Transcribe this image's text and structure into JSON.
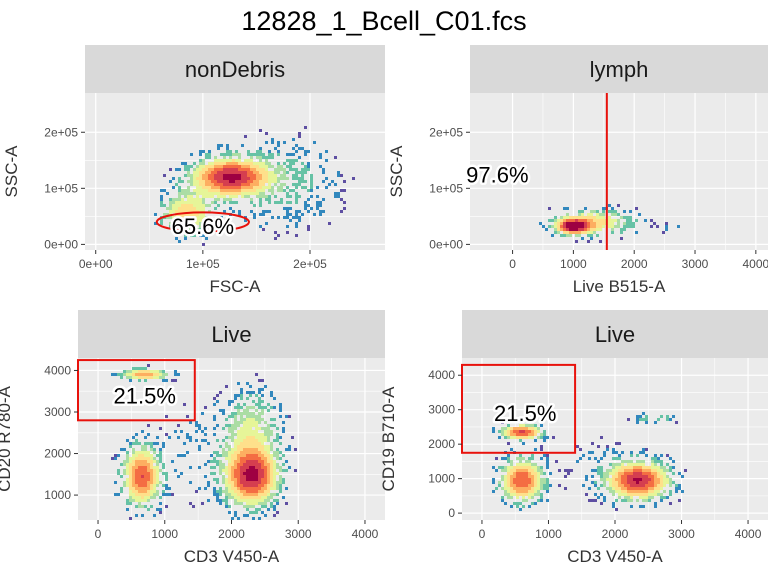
{
  "title": "12828_1_Bcell_C01.fcs",
  "colors": {
    "panel_bg": "#ebebeb",
    "grid": "#ffffff",
    "strip_bg": "#d9d9d9",
    "gate": "#e8120c",
    "density_scale": [
      "#5e4fa2",
      "#3288bd",
      "#66c2a5",
      "#abdda4",
      "#e6f598",
      "#fee08b",
      "#fdae61",
      "#f46d43",
      "#d53e4f",
      "#9e0142"
    ]
  },
  "chart_data": [
    {
      "type": "heatmap",
      "panel": "nonDebris",
      "xlabel": "FSC-A",
      "ylabel": "SSC-A",
      "xlim": [
        -10000,
        270000
      ],
      "ylim": [
        -10000,
        270000
      ],
      "xticks": [
        {
          "v": 0,
          "label": "0e+00"
        },
        {
          "v": 100000,
          "label": "1e+05"
        },
        {
          "v": 200000,
          "label": "2e+05"
        }
      ],
      "yticks": [
        {
          "v": 0,
          "label": "0e+00"
        },
        {
          "v": 100000,
          "label": "1e+05"
        },
        {
          "v": 200000,
          "label": "2e+05"
        }
      ],
      "gate": {
        "shape": "ellipse",
        "cx": 100000,
        "cy": 40000,
        "rx": 43000,
        "ry": 17000
      },
      "gate_label": {
        "text": "65.6%",
        "x": 100000,
        "y": 33000
      },
      "populations": [
        {
          "x_center": 125000,
          "x_sd": 23000,
          "y_center": 120000,
          "y_sd": 22000,
          "weight": 1.0
        },
        {
          "x_center": 85000,
          "x_sd": 16000,
          "y_center": 55000,
          "y_sd": 25000,
          "weight": 0.55
        },
        {
          "x_center": 175000,
          "x_sd": 35000,
          "y_center": 110000,
          "y_sd": 55000,
          "weight": 0.18
        }
      ],
      "x_min_data": 55000
    },
    {
      "type": "heatmap",
      "panel": "lymph",
      "xlabel": "Live B515-A",
      "ylabel": "SSC-A",
      "xlim": [
        -700,
        4200
      ],
      "ylim": [
        -10000,
        270000
      ],
      "xticks": [
        {
          "v": 0,
          "label": "0"
        },
        {
          "v": 1000,
          "label": "1000"
        },
        {
          "v": 2000,
          "label": "2000"
        },
        {
          "v": 3000,
          "label": "3000"
        },
        {
          "v": 4000,
          "label": "4000"
        }
      ],
      "yticks": [
        {
          "v": 0,
          "label": "0e+00"
        },
        {
          "v": 100000,
          "label": "1e+05"
        },
        {
          "v": 200000,
          "label": "2e+05"
        }
      ],
      "gate": {
        "shape": "vline",
        "x": 1550
      },
      "gate_label": {
        "text": "97.6%",
        "x": -250,
        "y": 125000
      },
      "populations": [
        {
          "x_center": 1000,
          "x_sd": 180,
          "y_center": 32000,
          "y_sd": 9000,
          "weight": 1.0
        },
        {
          "x_center": 1350,
          "x_sd": 430,
          "y_center": 40000,
          "y_sd": 15000,
          "weight": 0.5
        },
        {
          "x_center": 2600,
          "x_sd": 110,
          "y_center": 28000,
          "y_sd": 7000,
          "weight": 0.12
        }
      ]
    },
    {
      "type": "heatmap",
      "panel": "Live",
      "xlabel": "CD3 V450-A",
      "ylabel": "CD20 R780-A",
      "xlim": [
        -300,
        4300
      ],
      "ylim": [
        400,
        4300
      ],
      "xticks": [
        {
          "v": 0,
          "label": "0"
        },
        {
          "v": 1000,
          "label": "1000"
        },
        {
          "v": 2000,
          "label": "2000"
        },
        {
          "v": 3000,
          "label": "3000"
        },
        {
          "v": 4000,
          "label": "4000"
        }
      ],
      "yticks": [
        {
          "v": 1000,
          "label": "1000"
        },
        {
          "v": 2000,
          "label": "2000"
        },
        {
          "v": 3000,
          "label": "3000"
        },
        {
          "v": 4000,
          "label": "4000"
        }
      ],
      "gate": {
        "shape": "rect",
        "x0": -300,
        "x1": 1450,
        "y0": 2800,
        "y1": 4250
      },
      "gate_label": {
        "text": "21.5%",
        "x": 700,
        "y": 3400
      },
      "populations": [
        {
          "x_center": 650,
          "x_sd": 180,
          "y_center": 1450,
          "y_sd": 450,
          "weight": 0.85
        },
        {
          "x_center": 2300,
          "x_sd": 260,
          "y_center": 1450,
          "y_sd": 450,
          "weight": 1.0
        },
        {
          "x_center": 700,
          "x_sd": 220,
          "y_center": 3900,
          "y_sd": 90,
          "weight": 0.7
        },
        {
          "x_center": 2300,
          "x_sd": 280,
          "y_center": 2600,
          "y_sd": 600,
          "weight": 0.35
        },
        {
          "x_center": 1500,
          "x_sd": 500,
          "y_center": 2000,
          "y_sd": 900,
          "weight": 0.08
        }
      ]
    },
    {
      "type": "heatmap",
      "panel": "Live",
      "xlabel": "CD3 V450-A",
      "ylabel": "CD19 B710-A",
      "xlim": [
        -300,
        4300
      ],
      "ylim": [
        -200,
        4500
      ],
      "xticks": [
        {
          "v": 0,
          "label": "0"
        },
        {
          "v": 1000,
          "label": "1000"
        },
        {
          "v": 2000,
          "label": "2000"
        },
        {
          "v": 3000,
          "label": "3000"
        },
        {
          "v": 4000,
          "label": "4000"
        }
      ],
      "yticks": [
        {
          "v": 0,
          "label": "0"
        },
        {
          "v": 1000,
          "label": "1000"
        },
        {
          "v": 2000,
          "label": "2000"
        },
        {
          "v": 3000,
          "label": "3000"
        },
        {
          "v": 4000,
          "label": "4000"
        }
      ],
      "gate": {
        "shape": "rect",
        "x0": -300,
        "x1": 1400,
        "y0": 1750,
        "y1": 4300
      },
      "gate_label": {
        "text": "21.5%",
        "x": 650,
        "y": 2900
      },
      "populations": [
        {
          "x_center": 600,
          "x_sd": 200,
          "y_center": 2350,
          "y_sd": 140,
          "weight": 0.9
        },
        {
          "x_center": 600,
          "x_sd": 210,
          "y_center": 950,
          "y_sd": 400,
          "weight": 0.85
        },
        {
          "x_center": 2350,
          "x_sd": 300,
          "y_center": 950,
          "y_sd": 350,
          "weight": 1.0
        },
        {
          "x_center": 2600,
          "x_sd": 200,
          "y_center": 2750,
          "y_sd": 100,
          "weight": 0.25
        },
        {
          "x_center": 1700,
          "x_sd": 500,
          "y_center": 1400,
          "y_sd": 700,
          "weight": 0.06
        }
      ]
    }
  ]
}
